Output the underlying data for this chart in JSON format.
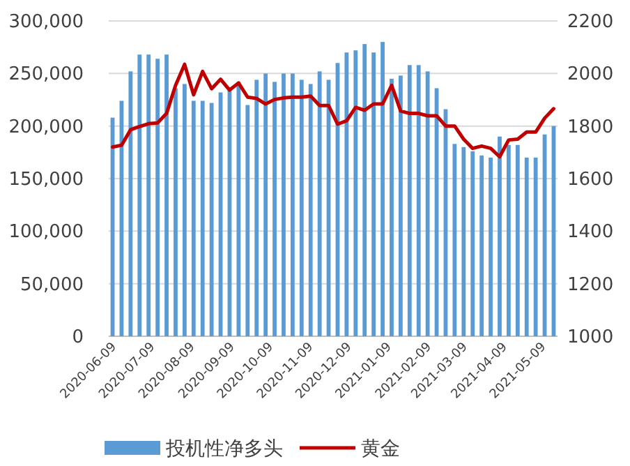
{
  "chart_data": {
    "type": "bar",
    "x": [
      "2020-06-09",
      "2020-06-16",
      "2020-06-23",
      "2020-06-30",
      "2020-07-07",
      "2020-07-14",
      "2020-07-21",
      "2020-07-28",
      "2020-08-04",
      "2020-08-11",
      "2020-08-18",
      "2020-08-25",
      "2020-09-01",
      "2020-09-08",
      "2020-09-15",
      "2020-09-22",
      "2020-09-29",
      "2020-10-06",
      "2020-10-13",
      "2020-10-20",
      "2020-10-27",
      "2020-11-03",
      "2020-11-10",
      "2020-11-17",
      "2020-11-24",
      "2020-12-01",
      "2020-12-08",
      "2020-12-15",
      "2020-12-22",
      "2020-12-29",
      "2021-01-05",
      "2021-01-12",
      "2021-01-19",
      "2021-01-26",
      "2021-02-02",
      "2021-02-09",
      "2021-02-16",
      "2021-02-23",
      "2021-03-02",
      "2021-03-09",
      "2021-03-16",
      "2021-03-23",
      "2021-03-30",
      "2021-04-06",
      "2021-04-13",
      "2021-04-20",
      "2021-04-27",
      "2021-05-04",
      "2021-05-11",
      "2021-05-18"
    ],
    "series": [
      {
        "name": "投机性净多头",
        "color": "#5b9bd5",
        "values": [
          208000,
          224000,
          252000,
          268000,
          268000,
          264000,
          268000,
          236000,
          240000,
          224000,
          224000,
          222000,
          232000,
          236000,
          242000,
          220000,
          244000,
          250000,
          242000,
          250000,
          250000,
          244000,
          240000,
          252000,
          244000,
          260000,
          270000,
          272000,
          278000,
          270000,
          280000,
          245000,
          248000,
          258000,
          258000,
          252000,
          236000,
          216000,
          183000,
          180000,
          176000,
          172000,
          170000,
          190000,
          182000,
          182000,
          170000,
          170000,
          192000,
          200000
        ]
      },
      {
        "name": "黄金",
        "type": "line",
        "axis": "y2",
        "color": "#c00000",
        "values": [
          1720,
          1727,
          1786,
          1798,
          1809,
          1812,
          1848,
          1955,
          2035,
          1919,
          2008,
          1942,
          1978,
          1937,
          1964,
          1910,
          1905,
          1884,
          1901,
          1907,
          1910,
          1910,
          1914,
          1878,
          1878,
          1807,
          1820,
          1871,
          1860,
          1884,
          1884,
          1955,
          1857,
          1848,
          1848,
          1839,
          1839,
          1800,
          1800,
          1750,
          1715,
          1724,
          1715,
          1683,
          1747,
          1750,
          1777,
          1777,
          1830,
          1866
        ]
      }
    ],
    "xlim": [
      "2020-06-06",
      "2021-05-21"
    ],
    "xticks": [
      "2020-06-09",
      "2020-07-09",
      "2020-08-09",
      "2020-09-09",
      "2020-10-09",
      "2020-11-09",
      "2020-12-09",
      "2021-01-09",
      "2021-02-09",
      "2021-03-09",
      "2021-04-09",
      "2021-05-09"
    ],
    "ylim": [
      0,
      300000
    ],
    "yticks": [
      {
        "value": 0,
        "label": "0"
      },
      {
        "value": 50000,
        "label": "50,000"
      },
      {
        "value": 100000,
        "label": "100,000"
      },
      {
        "value": 150000,
        "label": "150,000"
      },
      {
        "value": 200000,
        "label": "200,000"
      },
      {
        "value": 250000,
        "label": "250,000"
      },
      {
        "value": 300000,
        "label": "300,000"
      }
    ],
    "y2lim": [
      1000,
      2200
    ],
    "y2ticks": [
      1000,
      1200,
      1400,
      1600,
      1800,
      2000,
      2200
    ],
    "grid": "y",
    "legend": "bottom"
  }
}
